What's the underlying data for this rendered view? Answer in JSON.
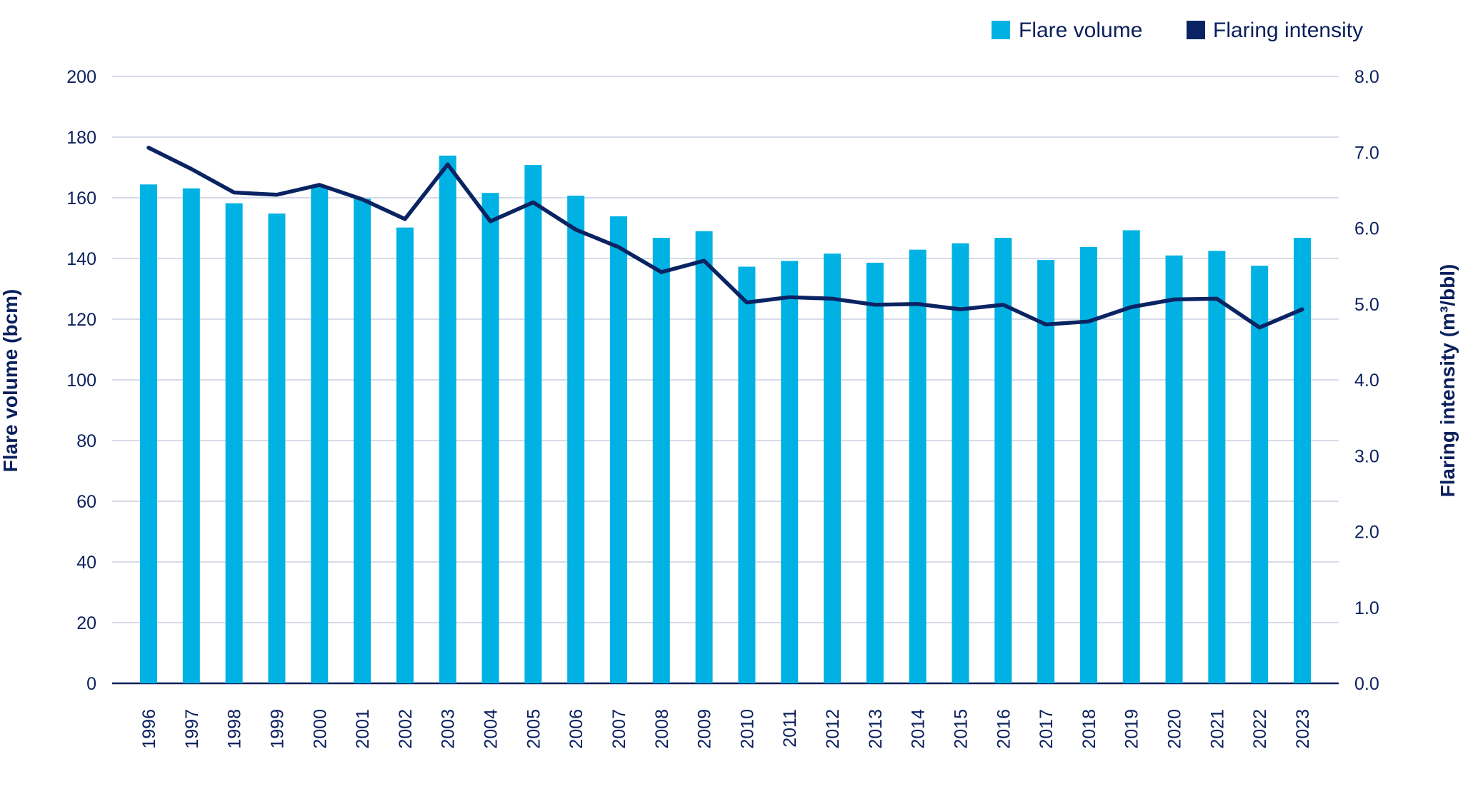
{
  "chart_data": {
    "type": "bar+line",
    "categories": [
      "1996",
      "1997",
      "1998",
      "1999",
      "2000",
      "2001",
      "2002",
      "2003",
      "2004",
      "2005",
      "2006",
      "2007",
      "2008",
      "2009",
      "2010",
      "2011",
      "2012",
      "2013",
      "2014",
      "2015",
      "2016",
      "2017",
      "2018",
      "2019",
      "2020",
      "2021",
      "2022",
      "2023"
    ],
    "series": [
      {
        "name": "Flare volume",
        "type": "bar",
        "axis": "left",
        "color": "#00b2e3",
        "values": [
          164.4,
          163.1,
          158.2,
          154.8,
          163.7,
          159.7,
          150.2,
          173.9,
          161.6,
          170.8,
          160.7,
          153.9,
          146.8,
          149.0,
          137.3,
          139.2,
          141.6,
          138.6,
          142.9,
          145.0,
          146.8,
          139.5,
          143.8,
          149.3,
          141.0,
          142.5,
          137.6,
          146.8
        ]
      },
      {
        "name": "Flaring intensity",
        "type": "line",
        "axis": "right",
        "color": "#0a2463",
        "values": [
          7.06,
          6.78,
          6.47,
          6.44,
          6.57,
          6.38,
          6.12,
          6.84,
          6.09,
          6.34,
          5.98,
          5.75,
          5.42,
          5.57,
          5.02,
          5.09,
          5.07,
          4.99,
          5.0,
          4.93,
          4.99,
          4.73,
          4.77,
          4.96,
          5.06,
          5.07,
          4.69,
          4.93
        ]
      }
    ],
    "ylabel": "Flare volume (bcm)",
    "y2label": "Flaring intensity (m³/bbl)",
    "ylim": [
      0,
      200
    ],
    "y2lim": [
      0,
      8
    ],
    "yticks": [
      "0",
      "20",
      "40",
      "60",
      "80",
      "100",
      "120",
      "140",
      "160",
      "180",
      "200"
    ],
    "y2ticks": [
      "0.0",
      "1.0",
      "2.0",
      "3.0",
      "4.0",
      "5.0",
      "6.0",
      "7.0",
      "8.0"
    ],
    "grid": true,
    "legend": "top-right"
  }
}
